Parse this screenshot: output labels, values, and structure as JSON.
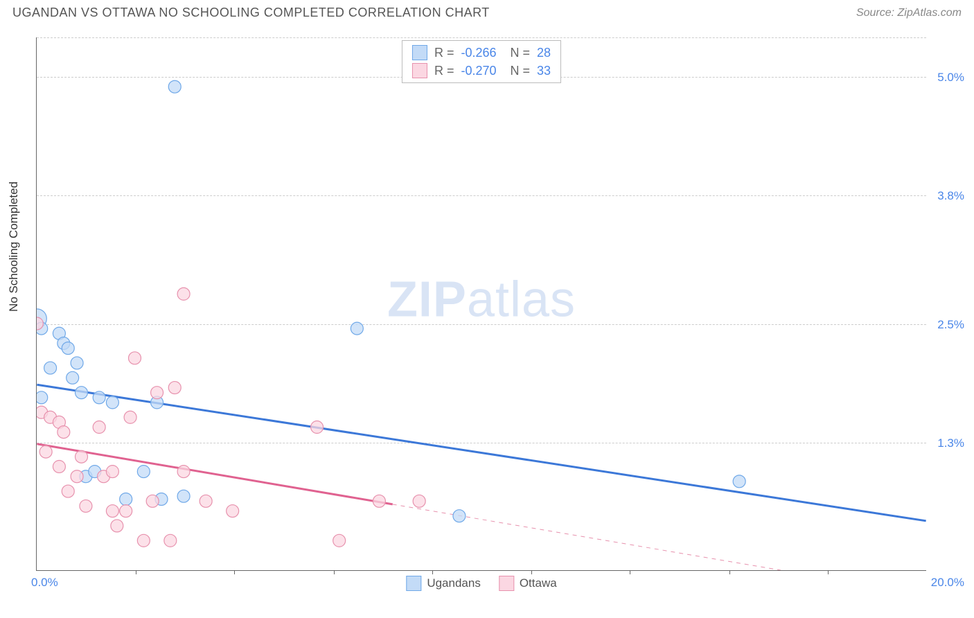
{
  "header": {
    "title": "UGANDAN VS OTTAWA NO SCHOOLING COMPLETED CORRELATION CHART",
    "source": "Source: ZipAtlas.com"
  },
  "chart": {
    "type": "scatter",
    "y_axis_title": "No Schooling Completed",
    "xlim": [
      0,
      20
    ],
    "ylim": [
      0,
      5.4
    ],
    "x_label_min": "0.0%",
    "x_label_max": "20.0%",
    "x_ticks": [
      2.22,
      4.44,
      6.67,
      8.89,
      11.11,
      13.33,
      15.56,
      17.78
    ],
    "y_gridlines": [
      {
        "value": 1.3,
        "label": "1.3%"
      },
      {
        "value": 2.5,
        "label": "2.5%"
      },
      {
        "value": 3.8,
        "label": "3.8%"
      },
      {
        "value": 5.0,
        "label": "5.0%"
      },
      {
        "value": 5.4,
        "label": ""
      }
    ],
    "background_color": "#ffffff",
    "grid_color": "#cccccc",
    "axis_color": "#666666",
    "label_color": "#4a86e8",
    "series": [
      {
        "name": "Ugandans",
        "fill": "#c3dbf7",
        "stroke": "#6fa8e8",
        "marker_radius": 9,
        "line": {
          "color": "#3c78d8",
          "width": 3,
          "y_at_x0": 1.88,
          "y_at_xmax": 0.5,
          "x_solid_end": 20,
          "dash_after": false
        },
        "r_value": "-0.266",
        "n_value": "28",
        "points": [
          [
            0.0,
            2.55,
            14
          ],
          [
            0.1,
            2.45
          ],
          [
            0.1,
            1.75
          ],
          [
            0.3,
            2.05
          ],
          [
            0.5,
            2.4
          ],
          [
            0.6,
            2.3
          ],
          [
            0.7,
            2.25
          ],
          [
            0.8,
            1.95
          ],
          [
            0.9,
            2.1
          ],
          [
            1.0,
            1.8
          ],
          [
            1.1,
            0.95
          ],
          [
            1.3,
            1.0
          ],
          [
            1.4,
            1.75
          ],
          [
            1.7,
            1.7
          ],
          [
            2.0,
            0.72
          ],
          [
            2.4,
            1.0
          ],
          [
            2.7,
            1.7
          ],
          [
            2.8,
            0.72
          ],
          [
            3.1,
            4.9
          ],
          [
            3.3,
            0.75
          ],
          [
            7.2,
            2.45
          ],
          [
            9.5,
            0.55
          ],
          [
            15.8,
            0.9
          ]
        ]
      },
      {
        "name": "Ottawa",
        "fill": "#fbd7e2",
        "stroke": "#e791ad",
        "marker_radius": 9,
        "line": {
          "color": "#e06290",
          "width": 3,
          "y_at_x0": 1.28,
          "y_at_xmax": -0.25,
          "x_solid_end": 8.0,
          "dash_after": true
        },
        "r_value": "-0.270",
        "n_value": "33",
        "points": [
          [
            0.0,
            2.5
          ],
          [
            0.1,
            1.6
          ],
          [
            0.2,
            1.2
          ],
          [
            0.3,
            1.55
          ],
          [
            0.5,
            1.05
          ],
          [
            0.5,
            1.5
          ],
          [
            0.6,
            1.4
          ],
          [
            0.7,
            0.8
          ],
          [
            0.9,
            0.95
          ],
          [
            1.0,
            1.15
          ],
          [
            1.1,
            0.65
          ],
          [
            1.4,
            1.45
          ],
          [
            1.5,
            0.95
          ],
          [
            1.7,
            0.6
          ],
          [
            1.7,
            1.0
          ],
          [
            1.8,
            0.45
          ],
          [
            2.0,
            0.6
          ],
          [
            2.1,
            1.55
          ],
          [
            2.2,
            2.15
          ],
          [
            2.4,
            0.3
          ],
          [
            2.6,
            0.7
          ],
          [
            2.7,
            1.8
          ],
          [
            3.0,
            0.3
          ],
          [
            3.1,
            1.85
          ],
          [
            3.3,
            1.0
          ],
          [
            3.3,
            2.8
          ],
          [
            3.8,
            0.7
          ],
          [
            4.4,
            0.6
          ],
          [
            6.3,
            1.45
          ],
          [
            6.8,
            0.3
          ],
          [
            7.7,
            0.7
          ],
          [
            8.6,
            0.7
          ]
        ]
      }
    ],
    "legend_bottom": [
      {
        "label": "Ugandans",
        "fill": "#c3dbf7",
        "stroke": "#6fa8e8"
      },
      {
        "label": "Ottawa",
        "fill": "#fbd7e2",
        "stroke": "#e791ad"
      }
    ],
    "watermark": {
      "bold": "ZIP",
      "rest": "atlas"
    }
  }
}
